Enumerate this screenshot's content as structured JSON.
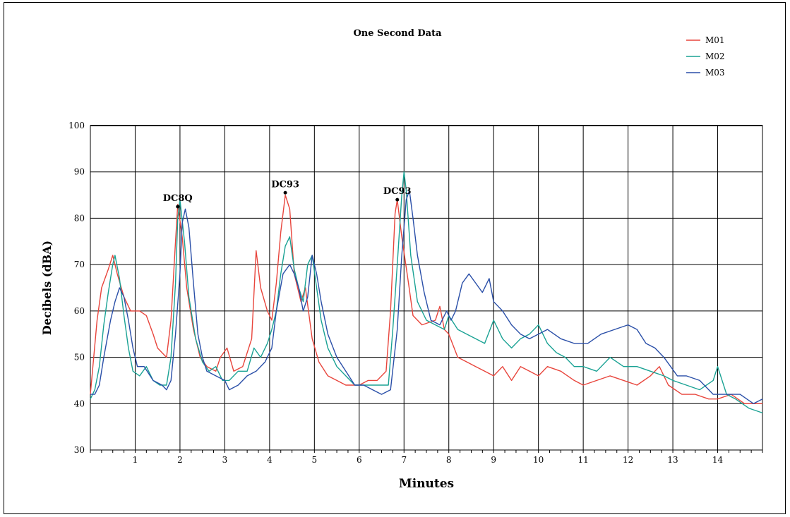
{
  "chart_data": {
    "type": "line",
    "title": "One Second Data",
    "xlabel": "Minutes",
    "ylabel": "Decibels (dBA)",
    "xlim": [
      0,
      15
    ],
    "ylim": [
      30,
      100
    ],
    "x_ticks": [
      1,
      2,
      3,
      4,
      5,
      6,
      7,
      8,
      9,
      10,
      11,
      12,
      13,
      14
    ],
    "y_ticks": [
      30,
      40,
      50,
      60,
      70,
      80,
      90,
      100
    ],
    "grid": true,
    "legend_position": "top-right",
    "annotations": [
      {
        "label": "DC8Q",
        "x": 1.95,
        "y": 82.5
      },
      {
        "label": "DC93",
        "x": 4.35,
        "y": 85.5
      },
      {
        "label": "DC93",
        "x": 6.85,
        "y": 84.0
      }
    ],
    "series": [
      {
        "name": "M01",
        "color": "#e8453c",
        "points": [
          [
            0,
            42
          ],
          [
            0.15,
            58
          ],
          [
            0.25,
            65
          ],
          [
            0.4,
            69
          ],
          [
            0.5,
            72
          ],
          [
            0.6,
            68
          ],
          [
            0.75,
            63
          ],
          [
            0.9,
            60
          ],
          [
            1.1,
            60
          ],
          [
            1.25,
            59
          ],
          [
            1.4,
            55
          ],
          [
            1.5,
            52
          ],
          [
            1.6,
            51
          ],
          [
            1.7,
            50
          ],
          [
            1.8,
            58
          ],
          [
            1.9,
            75
          ],
          [
            1.95,
            83
          ],
          [
            2.05,
            76
          ],
          [
            2.15,
            65
          ],
          [
            2.3,
            56
          ],
          [
            2.45,
            50
          ],
          [
            2.6,
            48
          ],
          [
            2.8,
            47
          ],
          [
            2.9,
            50
          ],
          [
            3.05,
            52
          ],
          [
            3.2,
            47
          ],
          [
            3.4,
            48
          ],
          [
            3.6,
            54
          ],
          [
            3.7,
            73
          ],
          [
            3.8,
            65
          ],
          [
            3.95,
            60
          ],
          [
            4.05,
            58
          ],
          [
            4.15,
            66
          ],
          [
            4.25,
            77
          ],
          [
            4.35,
            85
          ],
          [
            4.45,
            82
          ],
          [
            4.55,
            68
          ],
          [
            4.7,
            62
          ],
          [
            4.8,
            65
          ],
          [
            4.95,
            54
          ],
          [
            5.1,
            49
          ],
          [
            5.3,
            46
          ],
          [
            5.5,
            45
          ],
          [
            5.7,
            44
          ],
          [
            6.0,
            44
          ],
          [
            6.2,
            45
          ],
          [
            6.4,
            45
          ],
          [
            6.6,
            47
          ],
          [
            6.7,
            60
          ],
          [
            6.8,
            81
          ],
          [
            6.85,
            84
          ],
          [
            6.95,
            76
          ],
          [
            7.1,
            66
          ],
          [
            7.2,
            59
          ],
          [
            7.4,
            57
          ],
          [
            7.7,
            58
          ],
          [
            7.8,
            61
          ],
          [
            7.9,
            56
          ],
          [
            8.0,
            55
          ],
          [
            8.2,
            50
          ],
          [
            8.4,
            49
          ],
          [
            8.6,
            48
          ],
          [
            8.8,
            47
          ],
          [
            9.0,
            46
          ],
          [
            9.2,
            48
          ],
          [
            9.4,
            45
          ],
          [
            9.6,
            48
          ],
          [
            9.8,
            47
          ],
          [
            10.0,
            46
          ],
          [
            10.2,
            48
          ],
          [
            10.5,
            47
          ],
          [
            10.8,
            45
          ],
          [
            11.0,
            44
          ],
          [
            11.3,
            45
          ],
          [
            11.6,
            46
          ],
          [
            11.9,
            45
          ],
          [
            12.2,
            44
          ],
          [
            12.5,
            46
          ],
          [
            12.7,
            48
          ],
          [
            12.9,
            44
          ],
          [
            13.2,
            42
          ],
          [
            13.5,
            42
          ],
          [
            13.8,
            41
          ],
          [
            14.0,
            41
          ],
          [
            14.3,
            42
          ],
          [
            14.6,
            40
          ],
          [
            15.0,
            40
          ]
        ]
      },
      {
        "name": "M02",
        "color": "#1aa294",
        "points": [
          [
            0,
            41
          ],
          [
            0.1,
            43
          ],
          [
            0.2,
            48
          ],
          [
            0.3,
            57
          ],
          [
            0.4,
            64
          ],
          [
            0.5,
            70
          ],
          [
            0.55,
            72
          ],
          [
            0.65,
            67
          ],
          [
            0.75,
            59
          ],
          [
            0.85,
            52
          ],
          [
            0.95,
            47
          ],
          [
            1.1,
            46
          ],
          [
            1.25,
            48
          ],
          [
            1.4,
            45
          ],
          [
            1.55,
            44
          ],
          [
            1.7,
            44
          ],
          [
            1.8,
            50
          ],
          [
            1.9,
            66
          ],
          [
            1.95,
            80
          ],
          [
            2.0,
            84
          ],
          [
            2.1,
            75
          ],
          [
            2.2,
            63
          ],
          [
            2.35,
            54
          ],
          [
            2.5,
            49
          ],
          [
            2.65,
            47
          ],
          [
            2.8,
            48
          ],
          [
            2.95,
            45
          ],
          [
            3.1,
            45
          ],
          [
            3.3,
            47
          ],
          [
            3.5,
            47
          ],
          [
            3.65,
            52
          ],
          [
            3.8,
            50
          ],
          [
            3.95,
            53
          ],
          [
            4.05,
            56
          ],
          [
            4.15,
            60
          ],
          [
            4.25,
            68
          ],
          [
            4.35,
            74
          ],
          [
            4.45,
            76
          ],
          [
            4.55,
            69
          ],
          [
            4.65,
            65
          ],
          [
            4.75,
            62
          ],
          [
            4.85,
            70
          ],
          [
            4.95,
            72
          ],
          [
            5.05,
            65
          ],
          [
            5.15,
            58
          ],
          [
            5.3,
            52
          ],
          [
            5.5,
            48
          ],
          [
            5.7,
            46
          ],
          [
            5.9,
            44
          ],
          [
            6.1,
            44
          ],
          [
            6.3,
            44
          ],
          [
            6.5,
            44
          ],
          [
            6.65,
            44
          ],
          [
            6.75,
            56
          ],
          [
            6.85,
            70
          ],
          [
            6.95,
            85
          ],
          [
            7.0,
            90
          ],
          [
            7.05,
            86
          ],
          [
            7.15,
            72
          ],
          [
            7.3,
            62
          ],
          [
            7.5,
            58
          ],
          [
            7.7,
            57
          ],
          [
            7.9,
            56
          ],
          [
            8.0,
            59
          ],
          [
            8.2,
            56
          ],
          [
            8.4,
            55
          ],
          [
            8.6,
            54
          ],
          [
            8.8,
            53
          ],
          [
            9.0,
            58
          ],
          [
            9.2,
            54
          ],
          [
            9.4,
            52
          ],
          [
            9.6,
            54
          ],
          [
            9.8,
            55
          ],
          [
            10.0,
            57
          ],
          [
            10.2,
            53
          ],
          [
            10.4,
            51
          ],
          [
            10.6,
            50
          ],
          [
            10.8,
            48
          ],
          [
            11.0,
            48
          ],
          [
            11.3,
            47
          ],
          [
            11.6,
            50
          ],
          [
            11.9,
            48
          ],
          [
            12.2,
            48
          ],
          [
            12.5,
            47
          ],
          [
            12.8,
            46
          ],
          [
            13.0,
            45
          ],
          [
            13.3,
            44
          ],
          [
            13.6,
            43
          ],
          [
            13.9,
            45
          ],
          [
            14.0,
            48
          ],
          [
            14.2,
            42
          ],
          [
            14.4,
            41
          ],
          [
            14.7,
            39
          ],
          [
            15.0,
            38
          ]
        ]
      },
      {
        "name": "M03",
        "color": "#2a4fa8",
        "points": [
          [
            0,
            42
          ],
          [
            0.1,
            42
          ],
          [
            0.2,
            44
          ],
          [
            0.3,
            50
          ],
          [
            0.45,
            58
          ],
          [
            0.55,
            62
          ],
          [
            0.65,
            65
          ],
          [
            0.75,
            63
          ],
          [
            0.85,
            58
          ],
          [
            0.95,
            52
          ],
          [
            1.05,
            48
          ],
          [
            1.2,
            48
          ],
          [
            1.4,
            45
          ],
          [
            1.6,
            44
          ],
          [
            1.7,
            43
          ],
          [
            1.8,
            45
          ],
          [
            1.9,
            55
          ],
          [
            2.0,
            68
          ],
          [
            2.05,
            79
          ],
          [
            2.12,
            82
          ],
          [
            2.2,
            78
          ],
          [
            2.3,
            66
          ],
          [
            2.4,
            55
          ],
          [
            2.5,
            50
          ],
          [
            2.6,
            47
          ],
          [
            2.8,
            46
          ],
          [
            3.0,
            45
          ],
          [
            3.1,
            43
          ],
          [
            3.3,
            44
          ],
          [
            3.5,
            46
          ],
          [
            3.7,
            47
          ],
          [
            3.9,
            49
          ],
          [
            4.05,
            52
          ],
          [
            4.15,
            60
          ],
          [
            4.3,
            68
          ],
          [
            4.45,
            70
          ],
          [
            4.55,
            68
          ],
          [
            4.65,
            65
          ],
          [
            4.75,
            60
          ],
          [
            4.85,
            63
          ],
          [
            4.95,
            72
          ],
          [
            5.05,
            68
          ],
          [
            5.15,
            62
          ],
          [
            5.3,
            55
          ],
          [
            5.5,
            50
          ],
          [
            5.7,
            47
          ],
          [
            5.9,
            44
          ],
          [
            6.1,
            44
          ],
          [
            6.3,
            43
          ],
          [
            6.5,
            42
          ],
          [
            6.7,
            43
          ],
          [
            6.85,
            56
          ],
          [
            6.95,
            72
          ],
          [
            7.05,
            84
          ],
          [
            7.12,
            86
          ],
          [
            7.2,
            80
          ],
          [
            7.3,
            72
          ],
          [
            7.45,
            64
          ],
          [
            7.6,
            58
          ],
          [
            7.8,
            57
          ],
          [
            7.95,
            60
          ],
          [
            8.05,
            58
          ],
          [
            8.15,
            60
          ],
          [
            8.3,
            66
          ],
          [
            8.45,
            68
          ],
          [
            8.6,
            66
          ],
          [
            8.75,
            64
          ],
          [
            8.9,
            67
          ],
          [
            9.0,
            62
          ],
          [
            9.2,
            60
          ],
          [
            9.4,
            57
          ],
          [
            9.6,
            55
          ],
          [
            9.8,
            54
          ],
          [
            10.0,
            55
          ],
          [
            10.2,
            56
          ],
          [
            10.5,
            54
          ],
          [
            10.8,
            53
          ],
          [
            11.1,
            53
          ],
          [
            11.4,
            55
          ],
          [
            11.7,
            56
          ],
          [
            12.0,
            57
          ],
          [
            12.2,
            56
          ],
          [
            12.4,
            53
          ],
          [
            12.6,
            52
          ],
          [
            12.8,
            50
          ],
          [
            12.95,
            48
          ],
          [
            13.1,
            46
          ],
          [
            13.3,
            46
          ],
          [
            13.6,
            45
          ],
          [
            13.9,
            42
          ],
          [
            14.2,
            42
          ],
          [
            14.5,
            42
          ],
          [
            14.8,
            40
          ],
          [
            15.0,
            41
          ]
        ]
      }
    ]
  }
}
